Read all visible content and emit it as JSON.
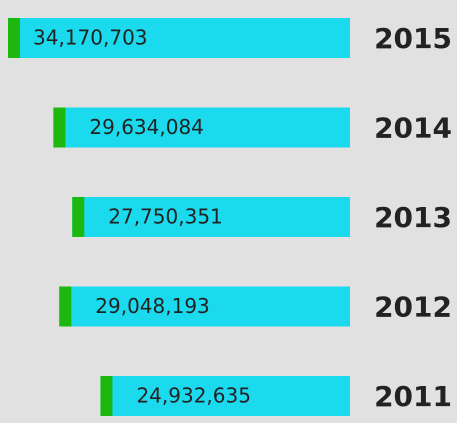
{
  "chart_data": {
    "type": "bar",
    "orientation": "horizontal",
    "categories": [
      "2015",
      "2014",
      "2013",
      "2012",
      "2011"
    ],
    "values": [
      34170703,
      29634084,
      27750351,
      29048193,
      24932635
    ],
    "value_labels": [
      "34,170,703",
      "29,634,084",
      "27,750,351",
      "29,048,193",
      "24,932,635"
    ],
    "color": "#1cdaee",
    "accent_color": "#1db80f"
  }
}
